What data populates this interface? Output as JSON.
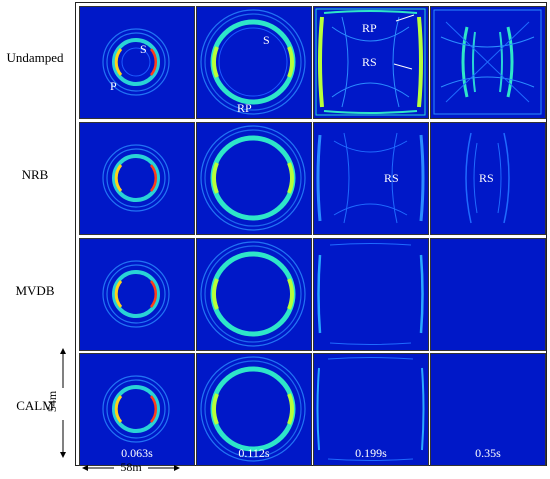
{
  "rows": [
    "Undamped",
    "NRB",
    "MVDB",
    "CALM"
  ],
  "times": [
    "0.063s",
    "0.112s",
    "0.199s",
    "0.35s"
  ],
  "annotations": {
    "S_first": "S",
    "P_first": "P",
    "S_second": "S",
    "RP_second": "RP",
    "RP_third": "RP",
    "RS_third": "RS",
    "RS_nrb_third": "RS",
    "RS_nrb_fourth": "RS"
  },
  "dimensions": {
    "horizontal": "58m",
    "vertical": "54m"
  },
  "colors": {
    "background": "#0018c8",
    "ring_outer": "#19a7ff",
    "ring_mid": "#2ee6c9",
    "ring_peak": "#ffd21a"
  }
}
